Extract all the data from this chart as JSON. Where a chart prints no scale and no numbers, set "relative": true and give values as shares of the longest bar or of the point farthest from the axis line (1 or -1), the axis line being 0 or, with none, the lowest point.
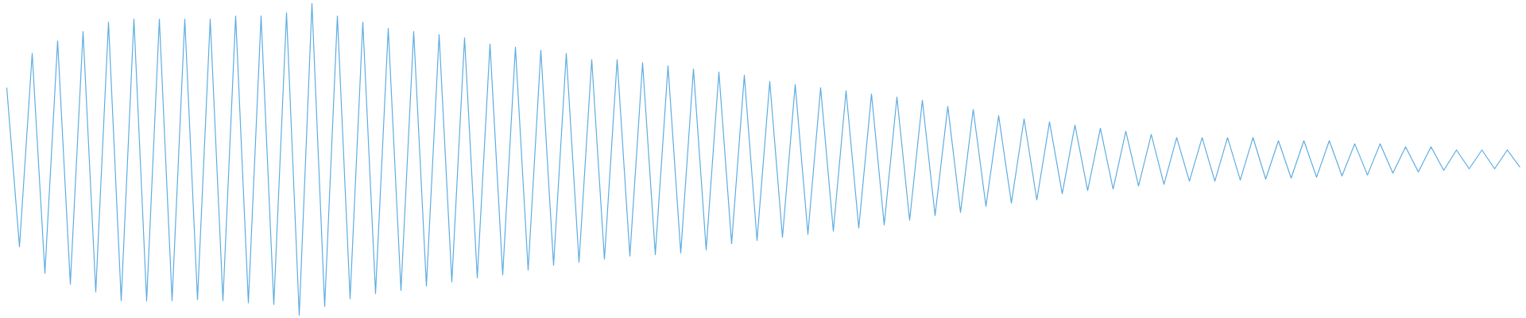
{
  "chart_data": {
    "type": "line",
    "relative": true,
    "color": "#5dade2",
    "categories": [
      null,
      null,
      null,
      null,
      null,
      null,
      null,
      null,
      null,
      null,
      null,
      null,
      null,
      null,
      null,
      null,
      null,
      null,
      null,
      null,
      null,
      null,
      null,
      null,
      null,
      null,
      null,
      null,
      null,
      null,
      null,
      null,
      null,
      null,
      null,
      null,
      null,
      null,
      null,
      null,
      null,
      null,
      null,
      null,
      null,
      null,
      null,
      null,
      null,
      null,
      null,
      null,
      null,
      null,
      null,
      null,
      null,
      null,
      null,
      null,
      null,
      null,
      null,
      null,
      null,
      null,
      null,
      null,
      null,
      null,
      null,
      null,
      null,
      null,
      null,
      null,
      null,
      null,
      null,
      null,
      null,
      null,
      null,
      null,
      null,
      null,
      null,
      null,
      null,
      null,
      null,
      null,
      null,
      null,
      null,
      null,
      null,
      null,
      null,
      null,
      null,
      null,
      null,
      null,
      null,
      null,
      null,
      null,
      null,
      null,
      null,
      null,
      null,
      null,
      null,
      null,
      null,
      null,
      null,
      null
    ],
    "values": [
      0.73,
      0.22,
      0.84,
      0.135,
      0.88,
      0.1,
      0.91,
      0.075,
      0.94,
      0.047,
      0.95,
      0.046,
      0.95,
      0.047,
      0.95,
      0.05,
      0.95,
      0.047,
      0.96,
      0.04,
      0.96,
      0.035,
      0.97,
      0,
      1.0,
      0.028,
      0.96,
      0.053,
      0.94,
      0.07,
      0.92,
      0.08,
      0.91,
      0.094,
      0.9,
      0.107,
      0.89,
      0.12,
      0.87,
      0.13,
      0.86,
      0.145,
      0.85,
      0.16,
      0.84,
      0.17,
      0.82,
      0.18,
      0.82,
      0.19,
      0.81,
      0.195,
      0.8,
      0.2,
      0.79,
      0.21,
      0.78,
      0.23,
      0.77,
      0.24,
      0.75,
      0.25,
      0.74,
      0.26,
      0.73,
      0.27,
      0.72,
      0.28,
      0.71,
      0.29,
      0.7,
      0.305,
      0.69,
      0.32,
      0.67,
      0.33,
      0.66,
      0.35,
      0.64,
      0.36,
      0.63,
      0.37,
      0.62,
      0.39,
      0.61,
      0.4,
      0.6,
      0.405,
      0.59,
      0.415,
      0.58,
      0.42,
      0.57,
      0.43,
      0.57,
      0.43,
      0.57,
      0.434,
      0.57,
      0.437,
      0.56,
      0.44,
      0.56,
      0.443,
      0.56,
      0.447,
      0.55,
      0.45,
      0.55,
      0.456,
      0.54,
      0.46,
      0.54,
      0.465,
      0.53,
      0.47,
      0.53,
      0.47,
      0.53,
      0.475
    ]
  }
}
